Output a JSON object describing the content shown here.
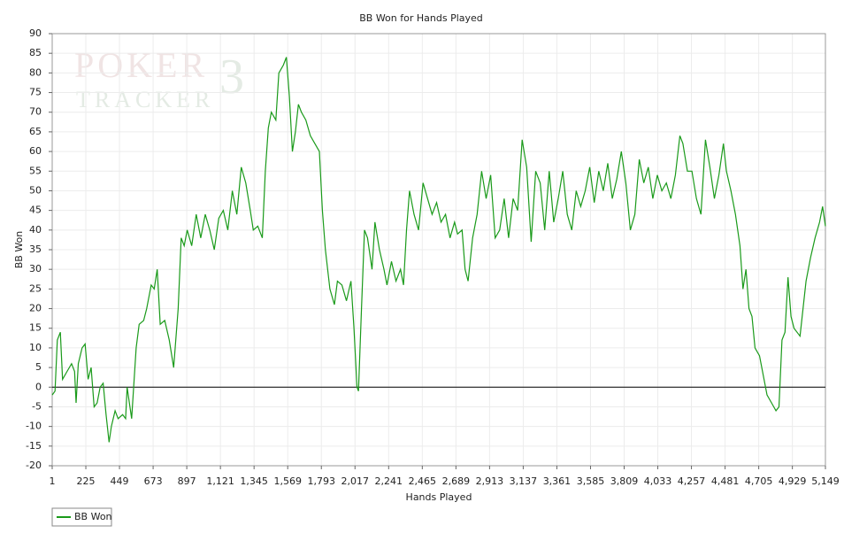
{
  "chart_data": {
    "type": "line",
    "title": "BB Won for Hands Played",
    "xlabel": "Hands Played",
    "ylabel": "BB Won",
    "watermark": [
      "POKER",
      "TRACKER",
      "3"
    ],
    "xlim": [
      1,
      5149
    ],
    "ylim": [
      -20,
      90
    ],
    "xticks": [
      1,
      225,
      449,
      673,
      897,
      {
        "value": 1121,
        "label": "1,121"
      },
      {
        "value": 1345,
        "label": "1,345"
      },
      {
        "value": 1569,
        "label": "1,569"
      },
      {
        "value": 1793,
        "label": "1,793"
      },
      {
        "value": 2017,
        "label": "2,017"
      },
      {
        "value": 2241,
        "label": "2,241"
      },
      {
        "value": 2465,
        "label": "2,465"
      },
      {
        "value": 2689,
        "label": "2,689"
      },
      {
        "value": 2913,
        "label": "2,913"
      },
      {
        "value": 3137,
        "label": "3,137"
      },
      {
        "value": 3361,
        "label": "3,361"
      },
      {
        "value": 3585,
        "label": "3,585"
      },
      {
        "value": 3809,
        "label": "3,809"
      },
      {
        "value": 4033,
        "label": "4,033"
      },
      {
        "value": 4257,
        "label": "4,257"
      },
      {
        "value": 4481,
        "label": "4,481"
      },
      {
        "value": 4705,
        "label": "4,705"
      },
      {
        "value": 4929,
        "label": "4,929"
      },
      {
        "value": 5149,
        "label": "5,149"
      }
    ],
    "yticks": [
      -20,
      -15,
      -10,
      -5,
      0,
      5,
      10,
      15,
      20,
      25,
      30,
      35,
      40,
      45,
      50,
      55,
      60,
      65,
      70,
      75,
      80,
      85,
      90
    ],
    "grid": true,
    "reference_line": 0,
    "legend": "bottom-left",
    "x": [
      1,
      20,
      35,
      55,
      70,
      100,
      130,
      150,
      160,
      175,
      200,
      220,
      240,
      260,
      280,
      300,
      320,
      340,
      360,
      380,
      395,
      420,
      440,
      470,
      490,
      500,
      530,
      560,
      580,
      610,
      630,
      660,
      680,
      700,
      720,
      750,
      780,
      810,
      840,
      860,
      880,
      900,
      930,
      960,
      990,
      1020,
      1050,
      1080,
      1110,
      1140,
      1170,
      1200,
      1230,
      1260,
      1290,
      1320,
      1340,
      1370,
      1400,
      1420,
      1440,
      1460,
      1490,
      1510,
      1540,
      1560,
      1580,
      1600,
      1620,
      1640,
      1660,
      1690,
      1720,
      1750,
      1780,
      1800,
      1820,
      1850,
      1880,
      1900,
      1930,
      1960,
      1990,
      2010,
      2030,
      2040,
      2060,
      2080,
      2100,
      2130,
      2150,
      2180,
      2210,
      2230,
      2260,
      2290,
      2320,
      2340,
      2360,
      2380,
      2410,
      2440,
      2470,
      2500,
      2530,
      2560,
      2590,
      2620,
      2650,
      2680,
      2700,
      2730,
      2750,
      2770,
      2800,
      2830,
      2860,
      2890,
      2920,
      2950,
      2980,
      3010,
      3040,
      3070,
      3100,
      3130,
      3160,
      3190,
      3220,
      3250,
      3280,
      3310,
      3340,
      3370,
      3400,
      3430,
      3460,
      3490,
      3520,
      3550,
      3580,
      3610,
      3640,
      3670,
      3700,
      3730,
      3760,
      3790,
      3820,
      3850,
      3880,
      3910,
      3940,
      3970,
      4000,
      4030,
      4060,
      4090,
      4120,
      4150,
      4180,
      4200,
      4230,
      4260,
      4290,
      4320,
      4350,
      4380,
      4410,
      4440,
      4470,
      4490,
      4520,
      4550,
      4580,
      4600,
      4620,
      4640,
      4660,
      4680,
      4710,
      4740,
      4760,
      4790,
      4820,
      4840,
      4860,
      4880,
      4900,
      4920,
      4940,
      4960,
      4980,
      5000,
      5020,
      5050,
      5080,
      5110,
      5130,
      5149
    ],
    "series": [
      {
        "name": "BB Won",
        "color": "#1a9a1a",
        "values": [
          -2,
          -1,
          12,
          14,
          2,
          4,
          6,
          4,
          -4,
          6,
          10,
          11,
          2,
          5,
          -5,
          -4,
          0,
          1,
          -7,
          -14,
          -10,
          -6,
          -8,
          -7,
          -8,
          0,
          -8,
          10,
          16,
          17,
          20,
          26,
          25,
          30,
          16,
          17,
          12,
          5,
          20,
          38,
          36,
          40,
          36,
          44,
          38,
          44,
          40,
          35,
          43,
          45,
          40,
          50,
          44,
          56,
          52,
          45,
          40,
          41,
          38,
          55,
          66,
          70,
          68,
          80,
          82,
          84,
          74,
          60,
          65,
          72,
          70,
          68,
          64,
          62,
          60,
          45,
          35,
          25,
          21,
          27,
          26,
          22,
          27,
          15,
          0,
          -1,
          20,
          40,
          38,
          30,
          42,
          35,
          30,
          26,
          32,
          27,
          30,
          26,
          40,
          50,
          44,
          40,
          52,
          48,
          44,
          47,
          42,
          44,
          38,
          42,
          39,
          40,
          30,
          27,
          38,
          44,
          55,
          48,
          54,
          38,
          40,
          48,
          38,
          48,
          45,
          63,
          56,
          37,
          55,
          52,
          40,
          55,
          42,
          48,
          55,
          44,
          40,
          50,
          46,
          50,
          56,
          47,
          55,
          50,
          57,
          48,
          53,
          60,
          52,
          40,
          44,
          58,
          52,
          56,
          48,
          54,
          50,
          52,
          48,
          54,
          64,
          62,
          55,
          55,
          48,
          44,
          63,
          56,
          48,
          54,
          62,
          55,
          50,
          44,
          36,
          25,
          30,
          20,
          18,
          10,
          8,
          2,
          -2,
          -4,
          -6,
          -5,
          12,
          14,
          28,
          18,
          15,
          14,
          13,
          20,
          27,
          33,
          38,
          42,
          46,
          41
        ]
      }
    ]
  }
}
